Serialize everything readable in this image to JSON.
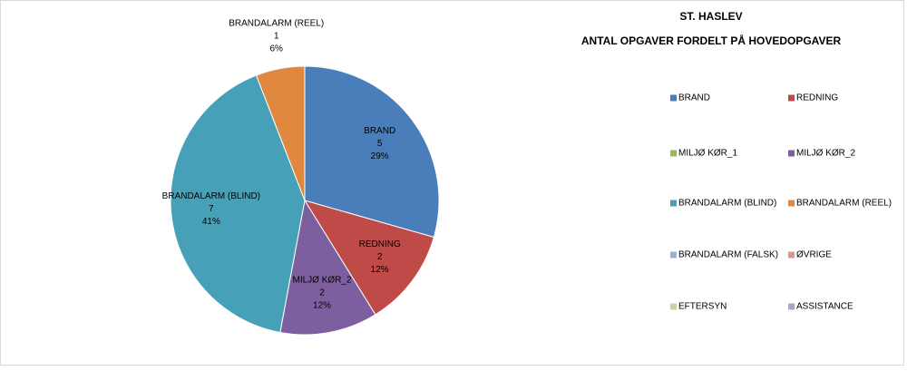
{
  "chart_data": {
    "type": "pie",
    "title": "ST. HASLEV",
    "subtitle": "ANTAL OPGAVER FORDELT PÅ HOVEDOPGAVER",
    "categories": [
      "BRAND",
      "REDNING",
      "MILJØ KØR_1",
      "MILJØ KØR_2",
      "BRANDALARM (BLIND)",
      "BRANDALARM (REEL)",
      "BRANDALARM (FALSK)",
      "ØVRIGE",
      "EFTERSYN",
      "ASSISTANCE"
    ],
    "values": [
      5,
      2,
      0,
      2,
      7,
      1,
      0,
      0,
      0,
      0
    ],
    "percent_labels": [
      "29%",
      "12%",
      null,
      "12%",
      "41%",
      "6%",
      null,
      null,
      null,
      null
    ],
    "colors": [
      "#4a7ebb",
      "#be4b48",
      "#98b954",
      "#7d5fa0",
      "#46a0b8",
      "#e0883f",
      "#95b3d7",
      "#d99694",
      "#c3d69b",
      "#b3a2c7"
    ],
    "legend": "right"
  }
}
